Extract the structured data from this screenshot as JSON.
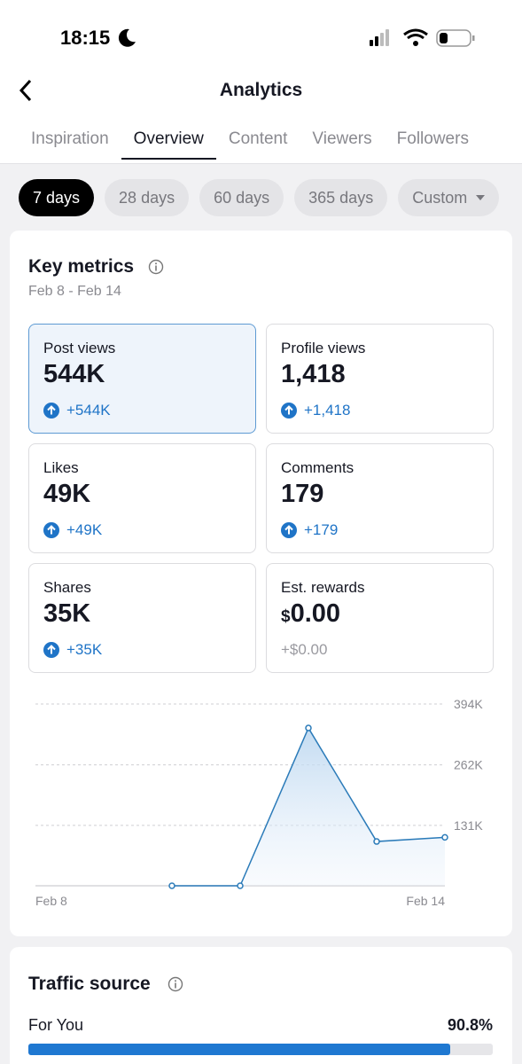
{
  "status_bar": {
    "time": "18:15"
  },
  "header": {
    "title": "Analytics"
  },
  "tabs": [
    {
      "label": "Inspiration",
      "selected": false
    },
    {
      "label": "Overview",
      "selected": true
    },
    {
      "label": "Content",
      "selected": false
    },
    {
      "label": "Viewers",
      "selected": false
    },
    {
      "label": "Followers",
      "selected": false
    }
  ],
  "date_ranges": [
    {
      "label": "7 days",
      "selected": true
    },
    {
      "label": "28 days",
      "selected": false
    },
    {
      "label": "60 days",
      "selected": false
    },
    {
      "label": "365 days",
      "selected": false
    },
    {
      "label": "Custom",
      "selected": false,
      "dropdown": true
    }
  ],
  "key_metrics": {
    "title": "Key metrics",
    "date_range": "Feb 8 - Feb 14",
    "cards": [
      {
        "label": "Post views",
        "value": "544K",
        "change": "+544K",
        "trend": "up",
        "selected": true
      },
      {
        "label": "Profile views",
        "value": "1,418",
        "change": "+1,418",
        "trend": "up",
        "selected": false
      },
      {
        "label": "Likes",
        "value": "49K",
        "change": "+49K",
        "trend": "up",
        "selected": false
      },
      {
        "label": "Comments",
        "value": "179",
        "change": "+179",
        "trend": "up",
        "selected": false
      },
      {
        "label": "Shares",
        "value": "35K",
        "change": "+35K",
        "trend": "up",
        "selected": false
      },
      {
        "label": "Est. rewards",
        "currency": "$",
        "value": "0.00",
        "change": "+$0.00",
        "trend": null,
        "selected": false
      }
    ]
  },
  "chart_data": {
    "type": "line",
    "categories": [
      "Feb 8",
      null,
      null,
      null,
      null,
      null,
      "Feb 14"
    ],
    "values": [
      null,
      null,
      0,
      0,
      342000,
      96000,
      105000
    ],
    "color": "#2b7bb9",
    "ylim": [
      0,
      394000
    ],
    "yticks": [
      {
        "value": 131000,
        "label": "131K"
      },
      {
        "value": 262000,
        "label": "262K"
      },
      {
        "value": 394000,
        "label": "394K"
      }
    ],
    "grid": true
  },
  "traffic_source": {
    "title": "Traffic source",
    "items": [
      {
        "label": "For You",
        "value": 90.8,
        "value_label": "90.8%"
      }
    ]
  }
}
